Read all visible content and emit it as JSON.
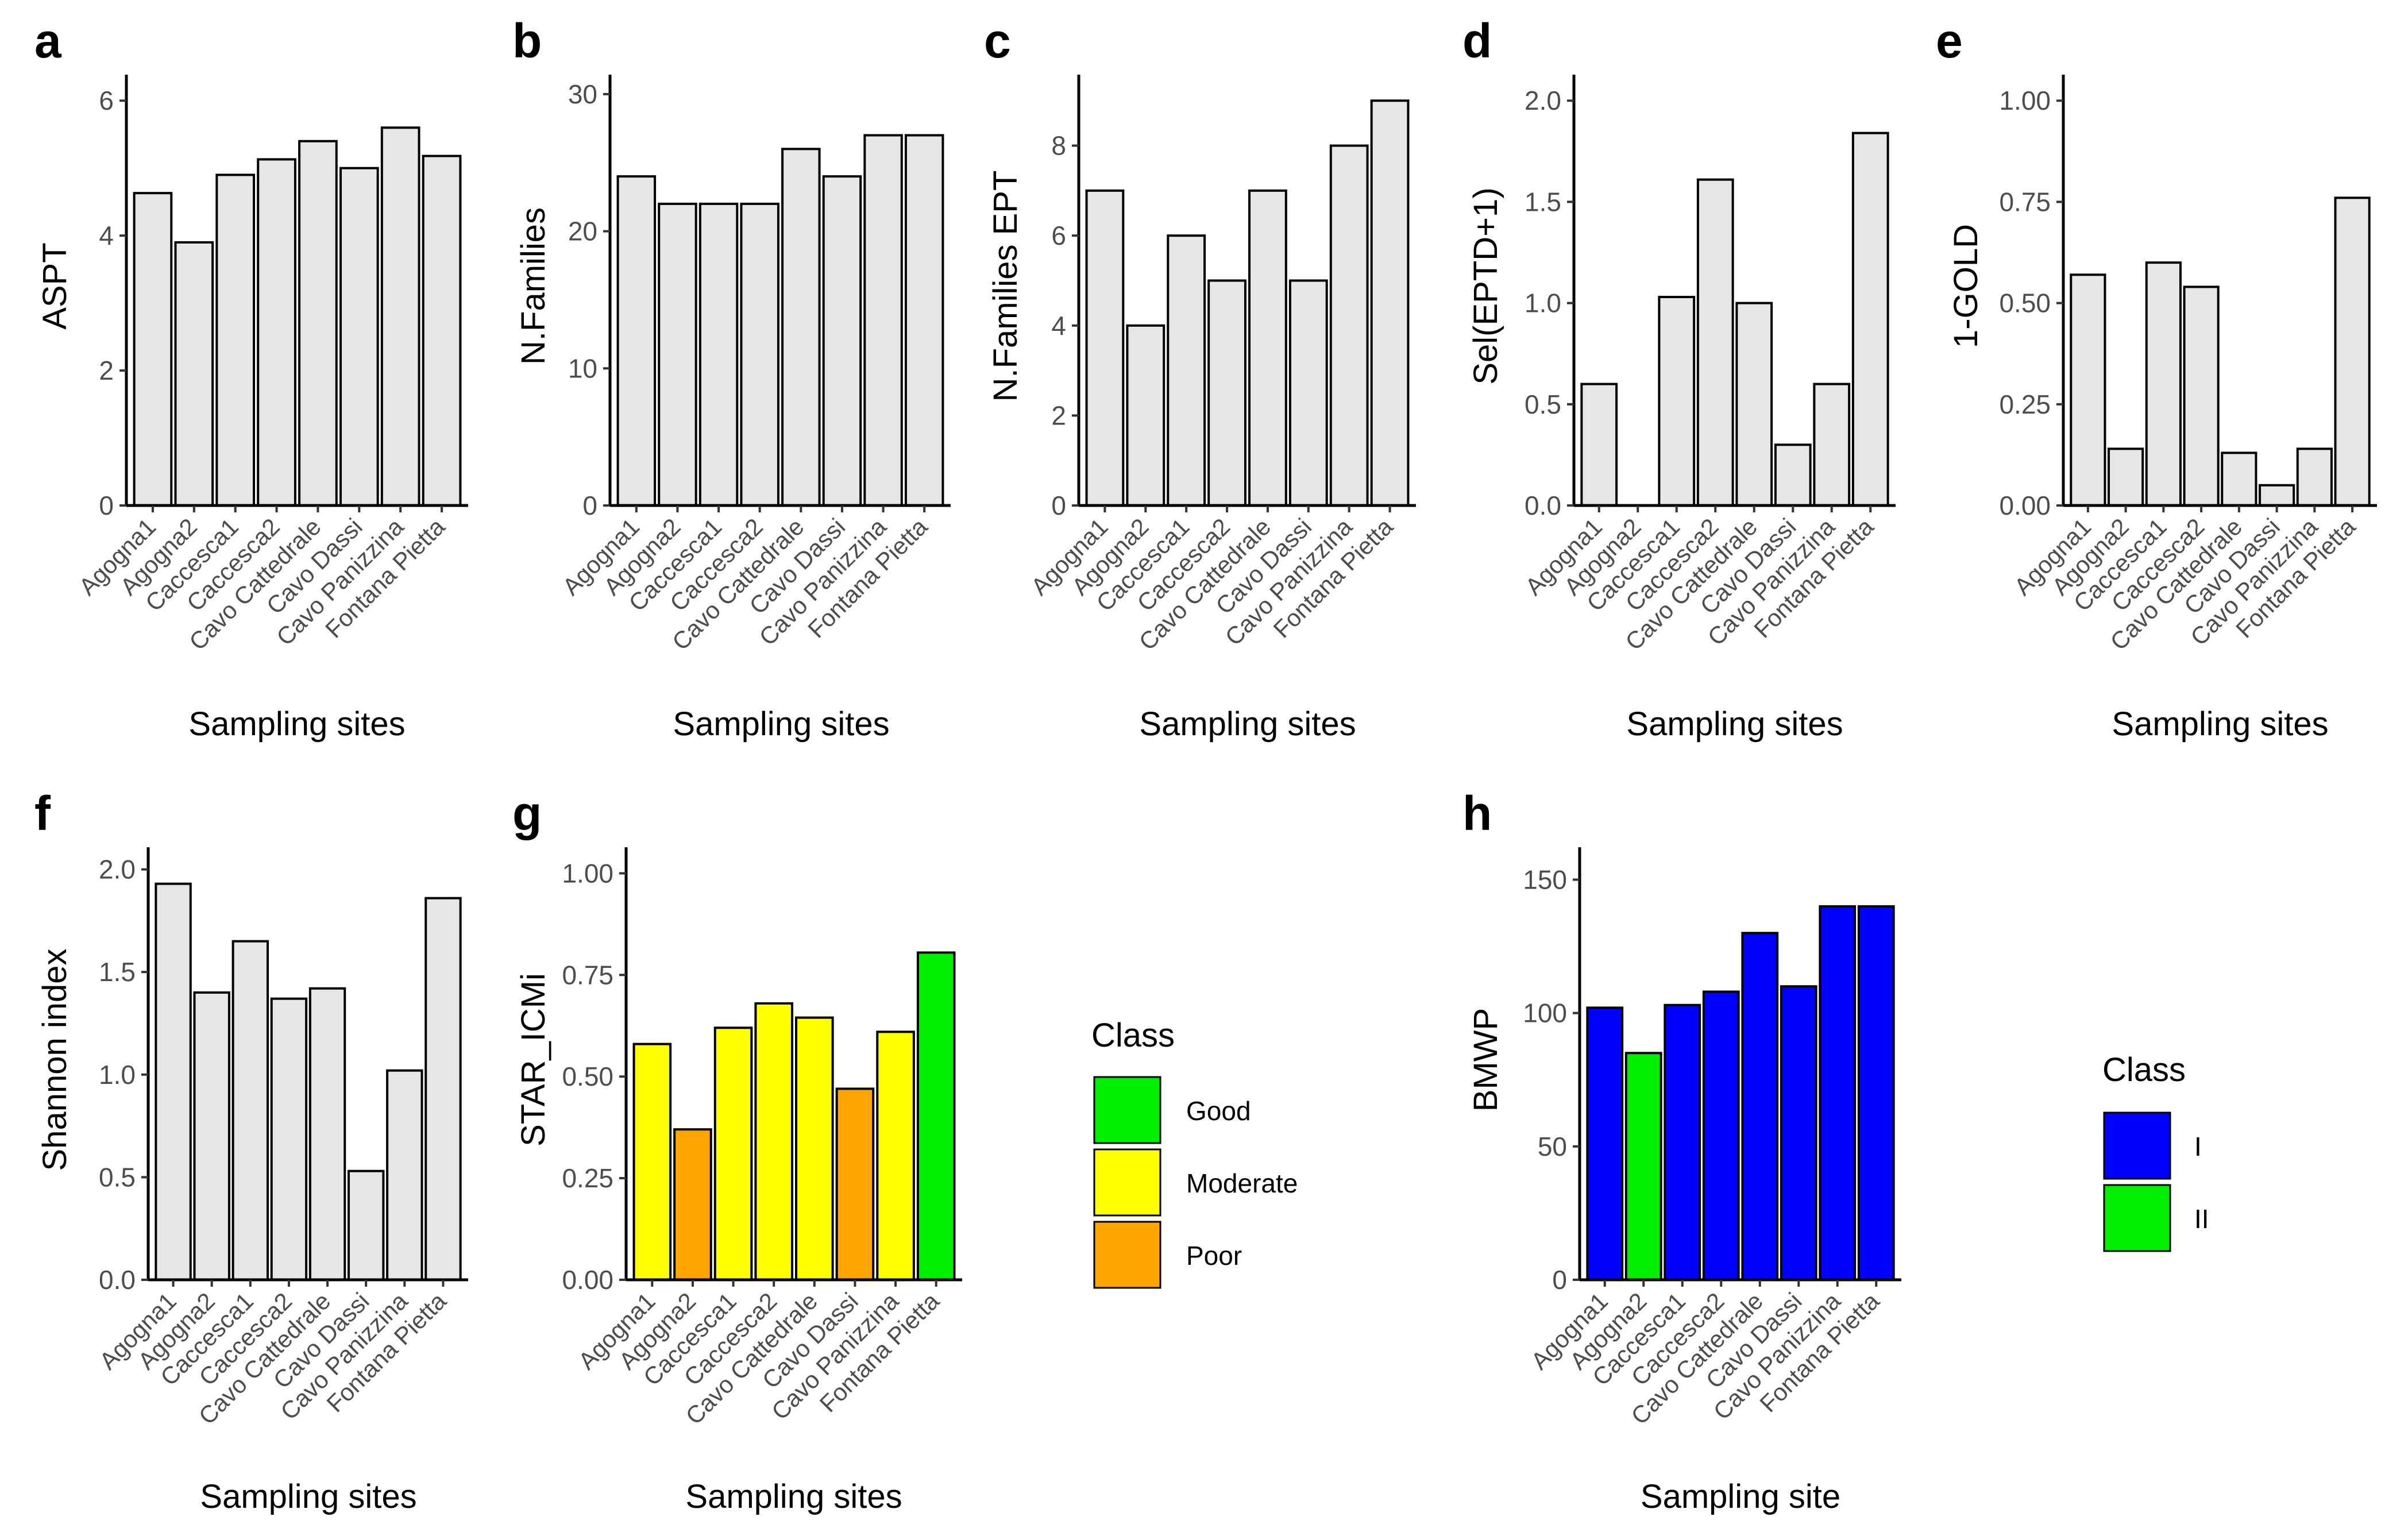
{
  "figure": {
    "panels": [
      {
        "letter": "a",
        "ylabel": "ASPT",
        "xlabel": "Sampling sites"
      },
      {
        "letter": "b",
        "ylabel": "N.Families",
        "xlabel": "Sampling sites"
      },
      {
        "letter": "c",
        "ylabel": "N.Families EPT",
        "xlabel": "Sampling sites"
      },
      {
        "letter": "d",
        "ylabel": "Sel(EPTD+1)",
        "xlabel": "Sampling sites"
      },
      {
        "letter": "e",
        "ylabel": "1-GOLD",
        "xlabel": "Sampling sites"
      },
      {
        "letter": "f",
        "ylabel": "Shannon index",
        "xlabel": "Sampling sites"
      },
      {
        "letter": "g",
        "ylabel": "STAR_ICMi",
        "xlabel": "Sampling sites"
      },
      {
        "letter": "h",
        "ylabel": "BMWP",
        "xlabel": "Sampling site"
      }
    ],
    "legends": [
      {
        "panel": "g",
        "title": "Class",
        "items": [
          {
            "label": "Good",
            "color": "#00ee00"
          },
          {
            "label": "Moderate",
            "color": "#ffff00"
          },
          {
            "label": "Poor",
            "color": "#ffa500"
          }
        ]
      },
      {
        "panel": "h",
        "title": "Class",
        "items": [
          {
            "label": "I",
            "color": "#0000ff"
          },
          {
            "label": "II",
            "color": "#00ee00"
          }
        ]
      }
    ]
  },
  "chart_data": [
    {
      "type": "bar",
      "panel": "a",
      "title": "",
      "xlabel": "Sampling sites",
      "ylabel": "ASPT",
      "categories": [
        "Agogna1",
        "Agogna2",
        "Caccesca1",
        "Caccesca2",
        "Cavo Cattedrale",
        "Cavo Dassi",
        "Cavo Panizzina",
        "Fontana Pietta"
      ],
      "values": [
        4.63,
        3.9,
        4.9,
        5.13,
        5.4,
        5.0,
        5.6,
        5.18
      ],
      "ylim": [
        0,
        6.3
      ],
      "yticks": [
        0,
        2,
        4,
        6
      ],
      "ytick_labels": [
        "0",
        "2",
        "4",
        "6"
      ],
      "fill": "#e6e6e6"
    },
    {
      "type": "bar",
      "panel": "b",
      "title": "",
      "xlabel": "Sampling sites",
      "ylabel": "N.Families",
      "categories": [
        "Agogna1",
        "Agogna2",
        "Caccesca1",
        "Caccesca2",
        "Cavo Cattedrale",
        "Cavo Dassi",
        "Cavo Panizzina",
        "Fontana Pietta"
      ],
      "values": [
        24,
        22,
        22,
        22,
        26,
        24,
        27,
        27
      ],
      "ylim": [
        0,
        31
      ],
      "yticks": [
        0,
        10,
        20,
        30
      ],
      "ytick_labels": [
        "0",
        "10",
        "20",
        "30"
      ],
      "fill": "#e6e6e6"
    },
    {
      "type": "bar",
      "panel": "c",
      "title": "",
      "xlabel": "Sampling sites",
      "ylabel": "N.Families EPT",
      "categories": [
        "Agogna1",
        "Agogna2",
        "Caccesca1",
        "Caccesca2",
        "Cavo Cattedrale",
        "Cavo Dassi",
        "Cavo Panizzina",
        "Fontana Pietta"
      ],
      "values": [
        7,
        4,
        6,
        5,
        7,
        5,
        8,
        9
      ],
      "ylim": [
        0,
        9.45
      ],
      "yticks": [
        0,
        2,
        4,
        6,
        8
      ],
      "ytick_labels": [
        "0",
        "2",
        "4",
        "6",
        "8"
      ],
      "fill": "#e6e6e6"
    },
    {
      "type": "bar",
      "panel": "d",
      "title": "",
      "xlabel": "Sampling sites",
      "ylabel": "Sel(EPTD+1)",
      "categories": [
        "Agogna1",
        "Agogna2",
        "Caccesca1",
        "Caccesca2",
        "Cavo Cattedrale",
        "Cavo Dassi",
        "Cavo Panizzina",
        "Fontana Pietta"
      ],
      "values": [
        0.6,
        0.0,
        1.03,
        1.61,
        1.0,
        0.3,
        0.6,
        1.84
      ],
      "ylim": [
        0,
        2.1
      ],
      "yticks": [
        0,
        0.5,
        1.0,
        1.5,
        2.0
      ],
      "ytick_labels": [
        "0.0",
        "0.5",
        "1.0",
        "1.5",
        "2.0"
      ],
      "fill": "#e6e6e6"
    },
    {
      "type": "bar",
      "panel": "e",
      "title": "",
      "xlabel": "Sampling sites",
      "ylabel": "1-GOLD",
      "categories": [
        "Agogna1",
        "Agogna2",
        "Caccesca1",
        "Caccesca2",
        "Cavo Cattedrale",
        "Cavo Dassi",
        "Cavo Panizzina",
        "Fontana Pietta"
      ],
      "values": [
        0.57,
        0.14,
        0.6,
        0.54,
        0.13,
        0.05,
        0.14,
        0.76
      ],
      "ylim": [
        0,
        1.05
      ],
      "yticks": [
        0,
        0.25,
        0.5,
        0.75,
        1.0
      ],
      "ytick_labels": [
        "0.00",
        "0.25",
        "0.50",
        "0.75",
        "1.00"
      ],
      "fill": "#e6e6e6"
    },
    {
      "type": "bar",
      "panel": "f",
      "title": "",
      "xlabel": "Sampling sites",
      "ylabel": "Shannon index",
      "categories": [
        "Agogna1",
        "Agogna2",
        "Caccesca1",
        "Caccesca2",
        "Cavo Cattedrale",
        "Cavo Dassi",
        "Cavo Panizzina",
        "Fontana Pietta"
      ],
      "values": [
        1.93,
        1.4,
        1.65,
        1.37,
        1.42,
        0.53,
        1.02,
        1.86
      ],
      "ylim": [
        0,
        2.08
      ],
      "yticks": [
        0,
        0.5,
        1.0,
        1.5,
        2.0
      ],
      "ytick_labels": [
        "0.0",
        "0.5",
        "1.0",
        "1.5",
        "2.0"
      ],
      "fill": "#e6e6e6"
    },
    {
      "type": "bar",
      "panel": "g",
      "title": "",
      "xlabel": "Sampling sites",
      "ylabel": "STAR_ICMi",
      "categories": [
        "Agogna1",
        "Agogna2",
        "Caccesca1",
        "Caccesca2",
        "Cavo Cattedrale",
        "Cavo Dassi",
        "Cavo Panizzina",
        "Fontana Pietta"
      ],
      "values": [
        0.58,
        0.37,
        0.62,
        0.68,
        0.645,
        0.47,
        0.61,
        0.805
      ],
      "classes": [
        "Moderate",
        "Poor",
        "Moderate",
        "Moderate",
        "Moderate",
        "Poor",
        "Moderate",
        "Good"
      ],
      "ylim": [
        0,
        1.05
      ],
      "yticks": [
        0,
        0.25,
        0.5,
        0.75,
        1.0
      ],
      "ytick_labels": [
        "0.00",
        "0.25",
        "0.50",
        "0.75",
        "1.00"
      ],
      "legend": {
        "title": "Class",
        "position": "right"
      }
    },
    {
      "type": "bar",
      "panel": "h",
      "title": "",
      "xlabel": "Sampling site",
      "ylabel": "BMWP",
      "categories": [
        "Agogna1",
        "Agogna2",
        "Caccesca1",
        "Caccesca2",
        "Cavo Cattedrale",
        "Cavo Dassi",
        "Cavo Panizzina",
        "Fontana Pietta"
      ],
      "values": [
        102,
        85,
        103,
        108,
        130,
        110,
        140,
        140
      ],
      "classes": [
        "I",
        "II",
        "I",
        "I",
        "I",
        "I",
        "I",
        "I"
      ],
      "ylim": [
        0,
        160
      ],
      "yticks": [
        0,
        50,
        100,
        150
      ],
      "ytick_labels": [
        "0",
        "50",
        "100",
        "150"
      ],
      "legend": {
        "title": "Class",
        "position": "right"
      }
    }
  ]
}
